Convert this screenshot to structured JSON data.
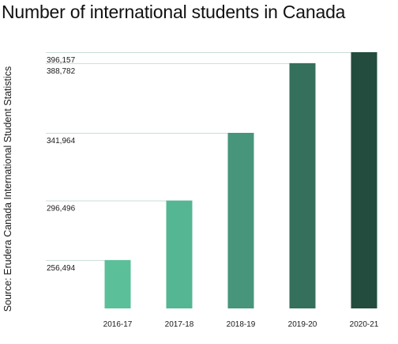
{
  "chart_data": {
    "type": "bar",
    "title": "Number of international students in Canada",
    "ylabel": "Source: Erudera Canada International Student Statistics",
    "xlabel": "",
    "categories": [
      "2016-17",
      "2017-18",
      "2018-19",
      "2019-20",
      "2020-21"
    ],
    "values": [
      256494,
      296496,
      341964,
      388782,
      396157
    ],
    "value_labels": [
      "256,494",
      "296,496",
      "341,964",
      "388,782",
      "396,157"
    ],
    "colors": [
      "#5bbf9a",
      "#55b693",
      "#47957a",
      "#34705c",
      "#234c3e"
    ],
    "gridline_color": "#c9ddd4",
    "ylim": [
      224000,
      396157
    ],
    "grid": false,
    "legend": "none"
  }
}
